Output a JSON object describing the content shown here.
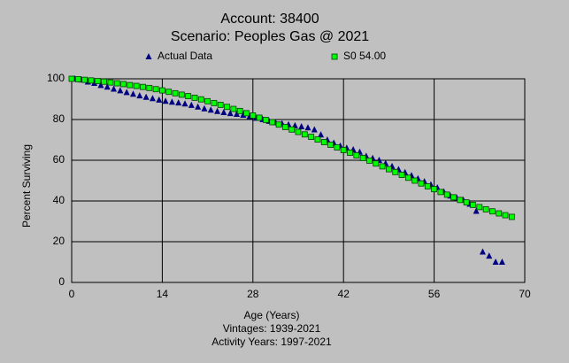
{
  "chart_data": {
    "type": "scatter",
    "title": "Account: 38400",
    "subtitle": "Scenario: Peoples Gas @ 2021",
    "x_label": "Age (Years)",
    "y_label": "Percent Surviving",
    "notes": [
      "Vintages: 1939-2021",
      "Activity Years: 1997-2021"
    ],
    "xlim": [
      0,
      70
    ],
    "xticks": [
      0,
      14,
      28,
      42,
      56,
      70
    ],
    "ylim": [
      0,
      100
    ],
    "yticks": [
      0,
      20,
      40,
      60,
      80,
      100
    ],
    "grid": true,
    "series": [
      {
        "name": "Actual Data",
        "color": "#000080",
        "marker": "triangle",
        "x": [
          0.5,
          1.5,
          2.5,
          3.5,
          4.5,
          5.5,
          6.5,
          7.5,
          8.5,
          9.5,
          10.5,
          11.5,
          12.5,
          13.5,
          14.5,
          15.5,
          16.5,
          17.5,
          18.5,
          19.5,
          20.5,
          21.5,
          22.5,
          23.5,
          24.5,
          25.5,
          26.5,
          27.5,
          28.5,
          29.5,
          30.5,
          31.5,
          32.5,
          33.5,
          34.5,
          35.5,
          36.5,
          37.5,
          38.5,
          39.5,
          40.5,
          41.5,
          42.5,
          43.5,
          44.5,
          45.5,
          46.5,
          47.5,
          48.5,
          49.5,
          50.5,
          51.5,
          52.5,
          53.5,
          54.5,
          55.5,
          56.5,
          57.5,
          58.5,
          59.5,
          60.5,
          61.5,
          62.5,
          63.5,
          64.5,
          65.5,
          66.5
        ],
        "values": [
          100,
          99.5,
          98.5,
          97.8,
          96.8,
          96,
          95,
          94.2,
          93.3,
          92.5,
          91.7,
          91,
          90.3,
          89.6,
          89,
          88.6,
          88.2,
          87.7,
          87,
          86.2,
          85.3,
          84.7,
          84,
          83.5,
          83,
          82.6,
          82.2,
          81.5,
          80.7,
          80,
          79.2,
          78.5,
          78,
          77.5,
          77,
          76.5,
          76,
          75,
          72.5,
          70,
          68.5,
          67,
          66,
          65.2,
          64,
          62,
          61,
          60,
          58.5,
          57,
          55.5,
          54,
          52.5,
          51,
          49.5,
          48,
          46.5,
          44.5,
          42.5,
          41.5,
          40.5,
          38.5,
          35,
          15,
          13,
          10,
          10
        ]
      },
      {
        "name": "S0 54.00",
        "color": "#00ff00",
        "marker": "square",
        "x": [
          0,
          1,
          2,
          3,
          4,
          5,
          6,
          7,
          8,
          9,
          10,
          11,
          12,
          13,
          14,
          15,
          16,
          17,
          18,
          19,
          20,
          21,
          22,
          23,
          24,
          25,
          26,
          27,
          28,
          29,
          30,
          31,
          32,
          33,
          34,
          35,
          36,
          37,
          38,
          39,
          40,
          41,
          42,
          43,
          44,
          45,
          46,
          47,
          48,
          49,
          50,
          51,
          52,
          53,
          54,
          55,
          56,
          57,
          58,
          59,
          60,
          61,
          62,
          63,
          64,
          65,
          66,
          67,
          68
        ],
        "values": [
          100,
          99.8,
          99.5,
          99.2,
          98.9,
          98.6,
          98.2,
          97.8,
          97.4,
          96.9,
          96.5,
          96,
          95.5,
          94.9,
          94.3,
          93.6,
          92.9,
          92.2,
          91.5,
          90.7,
          89.9,
          89,
          88.1,
          87.2,
          86.2,
          85.2,
          84.2,
          83.1,
          82,
          80.9,
          79.8,
          78.7,
          77.5,
          76.3,
          75.1,
          73.9,
          72.7,
          71.5,
          70.2,
          68.9,
          67.6,
          66.3,
          65,
          63.7,
          62.4,
          61.1,
          59.8,
          58.4,
          57,
          55.6,
          54.2,
          52.8,
          51.4,
          50,
          48.6,
          47.2,
          45.8,
          44.4,
          43.1,
          41.8,
          40.5,
          39.3,
          38.1,
          37,
          35.9,
          34.9,
          33.9,
          33,
          32.2
        ]
      }
    ]
  }
}
